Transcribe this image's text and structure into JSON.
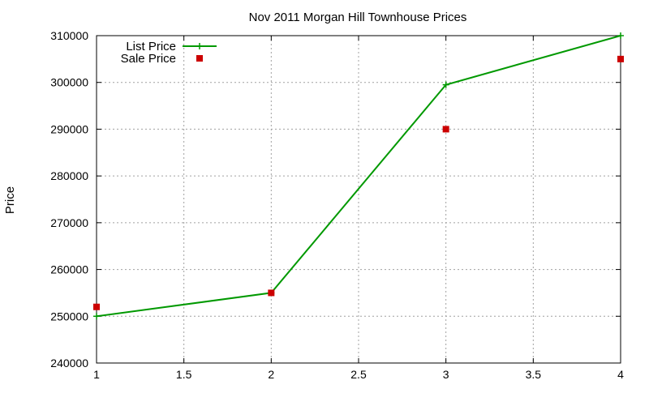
{
  "chart_data": {
    "type": "line",
    "title": "Nov 2011 Morgan Hill Townhouse Prices",
    "xlabel": "",
    "ylabel": "Price",
    "xlim": [
      1,
      4
    ],
    "ylim": [
      240000,
      310000
    ],
    "x_ticks": [
      1,
      1.5,
      2,
      2.5,
      3,
      3.5,
      4
    ],
    "x_tick_labels": [
      "1",
      "1.5",
      "2",
      "2.5",
      "3",
      "3.5",
      "4"
    ],
    "y_ticks": [
      240000,
      250000,
      260000,
      270000,
      280000,
      290000,
      300000,
      310000
    ],
    "y_tick_labels": [
      "240000",
      "250000",
      "260000",
      "270000",
      "280000",
      "290000",
      "300000",
      "310000"
    ],
    "grid": true,
    "legend_position": "top-left",
    "series": [
      {
        "name": "List Price",
        "style": "linespoints",
        "marker": "plus",
        "color": "#009900",
        "x": [
          1,
          2,
          3,
          4
        ],
        "y": [
          250000,
          255000,
          299500,
          310000
        ]
      },
      {
        "name": "Sale Price",
        "style": "points",
        "marker": "square",
        "color": "#cc0000",
        "x": [
          1,
          2,
          3,
          4
        ],
        "y": [
          252000,
          255000,
          290000,
          305000
        ]
      }
    ]
  }
}
